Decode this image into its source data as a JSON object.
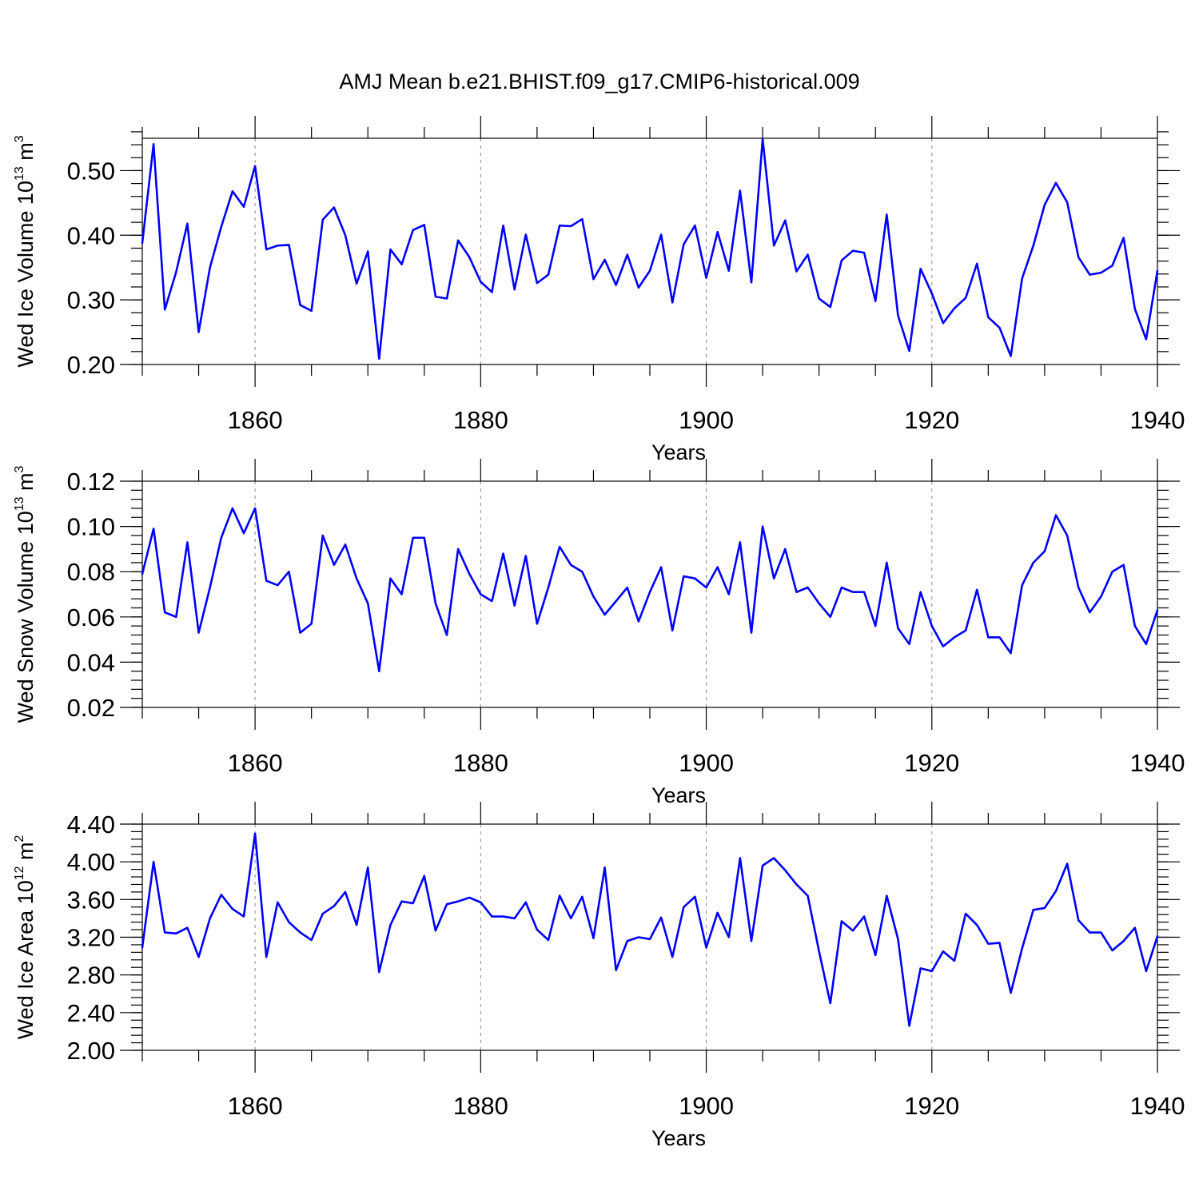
{
  "title": "AMJ Mean b.e21.BHIST.f09_g17.CMIP6-historical.009",
  "colors": {
    "line": "#0000ff",
    "axis": "#000000",
    "grid": "#888888"
  },
  "chart_data": [
    {
      "type": "line",
      "title": "AMJ Mean b.e21.BHIST.f09_g17.CMIP6-historical.009",
      "xlabel": "Years",
      "ylabel": {
        "main": "Wed Ice Volume 10",
        "exp": "13",
        "unit": " m",
        "unit_exp": "3"
      },
      "xlim": [
        1850,
        1940
      ],
      "ylim": [
        0.2,
        0.55
      ],
      "xticks": [
        "1860",
        "1880",
        "1900",
        "1920",
        "1940"
      ],
      "xtick_values": [
        1860,
        1880,
        1900,
        1920,
        1940
      ],
      "yticks": [
        "0.20",
        "0.30",
        "0.40",
        "0.50"
      ],
      "ytick_values": [
        0.2,
        0.3,
        0.4,
        0.5
      ],
      "y_minor_step": 0.02,
      "grid": "dashed vertical at major x ticks",
      "x_start": 1850,
      "values": [
        0.388,
        0.541,
        0.285,
        0.343,
        0.418,
        0.25,
        0.35,
        0.413,
        0.468,
        0.444,
        0.507,
        0.378,
        0.384,
        0.385,
        0.292,
        0.283,
        0.424,
        0.443,
        0.4,
        0.325,
        0.375,
        0.209,
        0.378,
        0.355,
        0.408,
        0.416,
        0.305,
        0.302,
        0.392,
        0.366,
        0.328,
        0.312,
        0.415,
        0.316,
        0.401,
        0.326,
        0.339,
        0.415,
        0.414,
        0.425,
        0.332,
        0.362,
        0.323,
        0.37,
        0.319,
        0.345,
        0.401,
        0.296,
        0.386,
        0.415,
        0.334,
        0.405,
        0.345,
        0.469,
        0.327,
        0.549,
        0.384,
        0.423,
        0.344,
        0.37,
        0.302,
        0.289,
        0.361,
        0.376,
        0.373,
        0.298,
        0.432,
        0.276,
        0.221,
        0.348,
        0.31,
        0.264,
        0.287,
        0.303,
        0.356,
        0.273,
        0.257,
        0.213,
        0.333,
        0.384,
        0.447,
        0.481,
        0.451,
        0.366,
        0.339,
        0.342,
        0.353,
        0.396,
        0.286,
        0.239,
        0.345
      ]
    },
    {
      "type": "line",
      "xlabel": "Years",
      "ylabel": {
        "main": "Wed Snow Volume 10",
        "exp": "13",
        "unit": " m",
        "unit_exp": "3"
      },
      "xlim": [
        1850,
        1940
      ],
      "ylim": [
        0.02,
        0.12
      ],
      "xticks": [
        "1860",
        "1880",
        "1900",
        "1920",
        "1940"
      ],
      "xtick_values": [
        1860,
        1880,
        1900,
        1920,
        1940
      ],
      "yticks": [
        "0.02",
        "0.04",
        "0.06",
        "0.08",
        "0.10",
        "0.12"
      ],
      "ytick_values": [
        0.02,
        0.04,
        0.06,
        0.08,
        0.1,
        0.12
      ],
      "y_minor_step": 0.004,
      "grid": "dashed vertical at major x ticks",
      "x_start": 1850,
      "values": [
        0.079,
        0.099,
        0.062,
        0.06,
        0.093,
        0.053,
        0.073,
        0.095,
        0.108,
        0.097,
        0.108,
        0.076,
        0.074,
        0.08,
        0.053,
        0.057,
        0.096,
        0.083,
        0.092,
        0.077,
        0.066,
        0.036,
        0.077,
        0.07,
        0.095,
        0.095,
        0.066,
        0.052,
        0.09,
        0.079,
        0.07,
        0.067,
        0.088,
        0.065,
        0.087,
        0.057,
        0.073,
        0.091,
        0.083,
        0.08,
        0.069,
        0.061,
        0.067,
        0.073,
        0.058,
        0.071,
        0.082,
        0.054,
        0.078,
        0.077,
        0.073,
        0.082,
        0.07,
        0.093,
        0.053,
        0.1,
        0.077,
        0.09,
        0.071,
        0.073,
        0.066,
        0.06,
        0.073,
        0.071,
        0.071,
        0.056,
        0.084,
        0.055,
        0.048,
        0.071,
        0.056,
        0.047,
        0.051,
        0.054,
        0.072,
        0.051,
        0.051,
        0.044,
        0.074,
        0.084,
        0.089,
        0.105,
        0.096,
        0.073,
        0.062,
        0.069,
        0.08,
        0.083,
        0.056,
        0.048,
        0.063
      ]
    },
    {
      "type": "line",
      "xlabel": "Years",
      "ylabel": {
        "main": "Wed Ice Area 10",
        "exp": "12",
        "unit": " m",
        "unit_exp": "2"
      },
      "xlim": [
        1850,
        1940
      ],
      "ylim": [
        2.0,
        4.4
      ],
      "xticks": [
        "1860",
        "1880",
        "1900",
        "1920",
        "1940"
      ],
      "xtick_values": [
        1860,
        1880,
        1900,
        1920,
        1940
      ],
      "yticks": [
        "2.00",
        "2.40",
        "2.80",
        "3.20",
        "3.60",
        "4.00",
        "4.40"
      ],
      "ytick_values": [
        2.0,
        2.4,
        2.8,
        3.2,
        3.6,
        4.0,
        4.4
      ],
      "y_minor_step": 0.08,
      "grid": "dashed vertical at major x ticks",
      "x_start": 1850,
      "values": [
        3.09,
        4.0,
        3.25,
        3.24,
        3.3,
        2.99,
        3.4,
        3.65,
        3.5,
        3.42,
        4.3,
        2.99,
        3.57,
        3.36,
        3.25,
        3.17,
        3.45,
        3.53,
        3.68,
        3.33,
        3.94,
        2.83,
        3.33,
        3.58,
        3.56,
        3.85,
        3.27,
        3.55,
        3.58,
        3.62,
        3.57,
        3.42,
        3.42,
        3.4,
        3.57,
        3.28,
        3.17,
        3.64,
        3.4,
        3.63,
        3.19,
        3.94,
        2.85,
        3.16,
        3.2,
        3.18,
        3.41,
        2.99,
        3.52,
        3.63,
        3.09,
        3.46,
        3.2,
        4.04,
        3.16,
        3.96,
        4.04,
        3.91,
        3.76,
        3.64,
        3.05,
        2.5,
        3.37,
        3.27,
        3.42,
        3.01,
        3.64,
        3.18,
        2.26,
        2.87,
        2.84,
        3.05,
        2.95,
        3.45,
        3.33,
        3.13,
        3.14,
        2.61,
        3.08,
        3.49,
        3.51,
        3.69,
        3.98,
        3.38,
        3.25,
        3.25,
        3.06,
        3.16,
        3.3,
        2.84,
        3.21
      ]
    }
  ]
}
